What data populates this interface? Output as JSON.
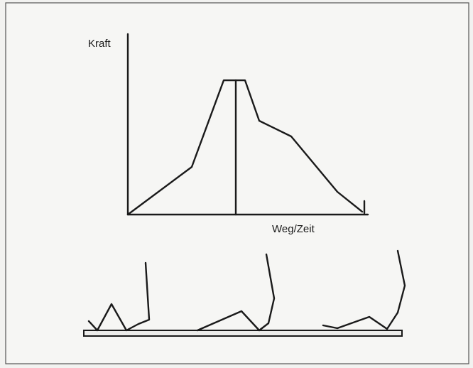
{
  "diagram": {
    "y_axis_label": "Kraft",
    "x_axis_label": "Weg/Zeit"
  }
}
